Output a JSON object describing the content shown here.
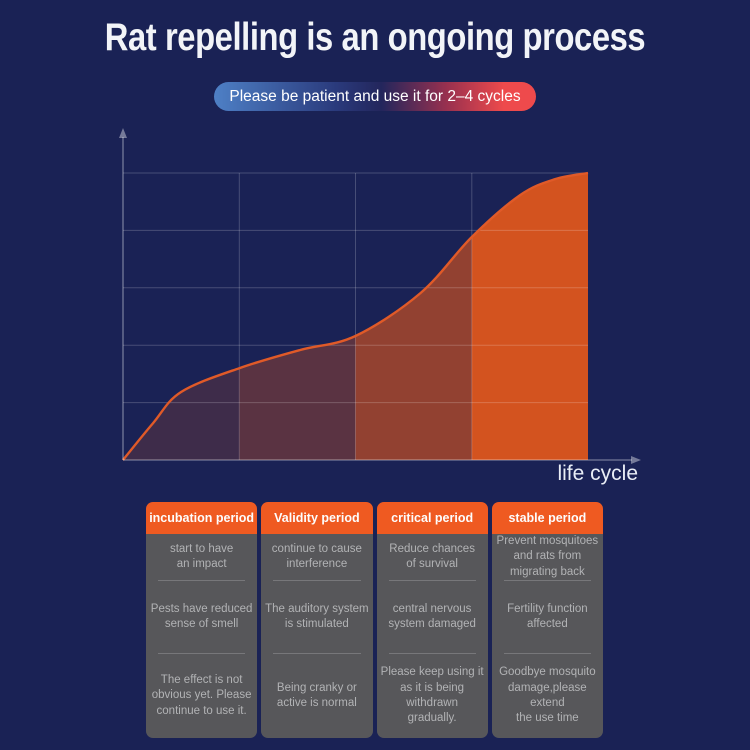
{
  "title": "Rat repelling is an ongoing process",
  "banner": {
    "text": "Please be patient and use it for 2–4 cycles"
  },
  "chart_data": {
    "type": "area",
    "title": "",
    "xlabel": "life cycle",
    "ylabel": "",
    "x_range": [
      0,
      1
    ],
    "y_range": [
      0,
      1
    ],
    "grid": {
      "on": true,
      "h_fractions": [
        0.2,
        0.4,
        0.6,
        0.8,
        1.0
      ],
      "v_fractions": [
        0.25,
        0.5,
        0.75
      ]
    },
    "curve_points": [
      [
        0,
        0
      ],
      [
        0.065,
        0.129
      ],
      [
        0.125,
        0.237
      ],
      [
        0.25,
        0.32
      ],
      [
        0.38,
        0.383
      ],
      [
        0.5,
        0.432
      ],
      [
        0.64,
        0.582
      ],
      [
        0.75,
        0.777
      ],
      [
        0.854,
        0.923
      ],
      [
        0.93,
        0.979
      ],
      [
        1,
        1
      ]
    ],
    "segments": [
      {
        "label": "incubation period",
        "x0": 0.0,
        "x1": 0.25,
        "opacity": 0.2
      },
      {
        "label": "Validity period",
        "x0": 0.25,
        "x1": 0.5,
        "opacity": 0.35
      },
      {
        "label": "critical period",
        "x0": 0.5,
        "x1": 0.75,
        "opacity": 0.65
      },
      {
        "label": "stable period",
        "x0": 0.75,
        "x1": 1.0,
        "opacity": 1.0
      }
    ],
    "colors": {
      "fill": "#d3531f",
      "stroke": "#e05a28",
      "grid": "rgba(255,255,255,0.20)",
      "axis": "rgba(255,255,255,0.40)"
    }
  },
  "table": {
    "columns": [
      {
        "header": "incubation period",
        "cells": [
          "start to have\nan impact",
          "Pests have reduced\nsense of smell",
          "The effect is not\nobvious yet. Please\ncontinue to use it."
        ]
      },
      {
        "header": "Validity period",
        "cells": [
          "continue to cause\ninterference",
          "The auditory system\nis stimulated",
          "Being cranky or\nactive is normal"
        ]
      },
      {
        "header": "critical period",
        "cells": [
          "Reduce chances\nof survival",
          "central nervous\nsystem damaged",
          "Please keep using it\nas it is being\nwithdrawn\ngradually."
        ]
      },
      {
        "header": "stable period",
        "cells": [
          "Prevent mosquitoes\nand rats from\nmigrating back",
          "Fertility function\naffected",
          "Goodbye mosquito\ndamage,please\nextend\nthe use time"
        ]
      }
    ]
  },
  "colors": {
    "bg": "#1a2255",
    "titleText": "#f2f4f8",
    "headerOrange": "#ef5a21",
    "panelGray": "#57575a",
    "cellText": "#b2b3b5",
    "bannerBlue": "#4e80c6",
    "bannerDark": "#23265c",
    "bannerRed": "#ee4a4c"
  }
}
